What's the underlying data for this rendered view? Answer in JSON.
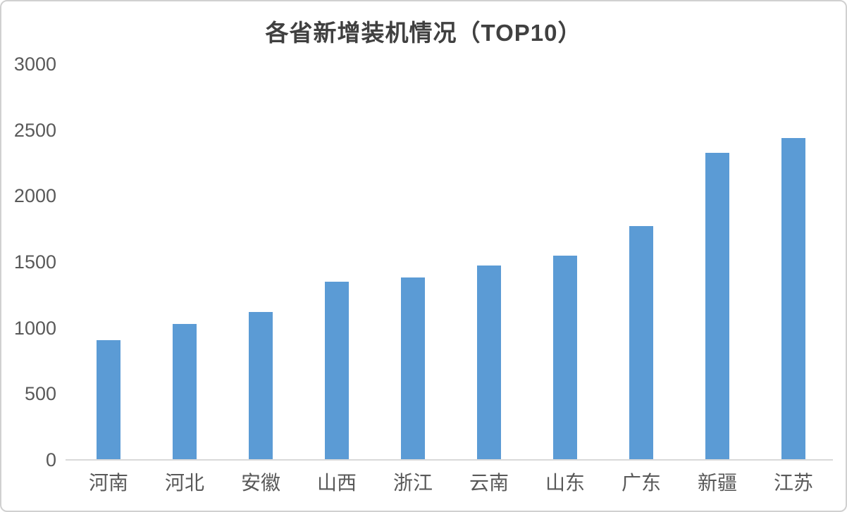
{
  "chart_data": {
    "type": "bar",
    "title": "各省新增装机情况（TOP10）",
    "categories": [
      "河南",
      "河北",
      "安徽",
      "山西",
      "浙江",
      "云南",
      "山东",
      "广东",
      "新疆",
      "江苏"
    ],
    "values": [
      910,
      1030,
      1120,
      1350,
      1380,
      1475,
      1550,
      1770,
      2330,
      2440
    ],
    "xlabel": "",
    "ylabel": "",
    "ylim": [
      0,
      3000
    ],
    "yticks": [
      0,
      500,
      1000,
      1500,
      2000,
      2500,
      3000
    ],
    "grid": false,
    "legend_position": "none",
    "bar_color": "#5B9BD5",
    "axis_line_color": "#D9D9D9",
    "tick_label_color": "#595959",
    "title_color": "#404040"
  }
}
